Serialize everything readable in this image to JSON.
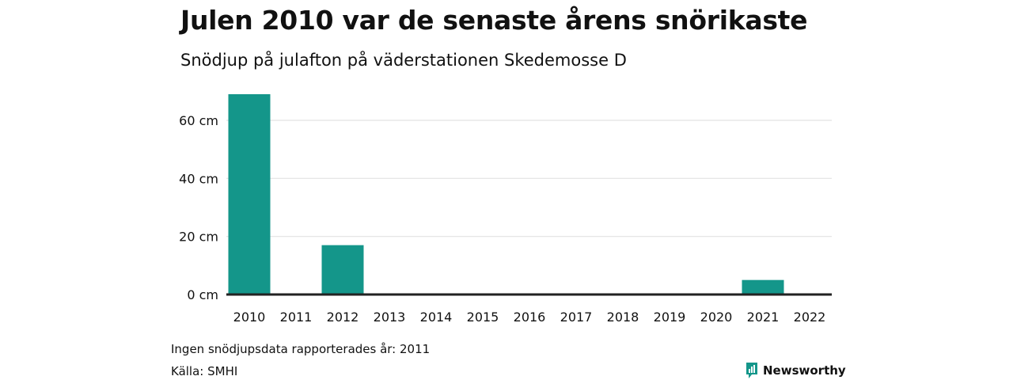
{
  "chart_data": {
    "type": "bar",
    "title": "Julen 2010 var de senaste årens snörikaste",
    "subtitle": "Snödjup på julafton på väderstationen Skedemosse D",
    "categories": [
      "2010",
      "2011",
      "2012",
      "2013",
      "2014",
      "2015",
      "2016",
      "2017",
      "2018",
      "2019",
      "2020",
      "2021",
      "2022"
    ],
    "values": [
      69,
      null,
      17,
      0,
      0,
      0,
      0,
      0,
      0,
      0,
      0,
      5,
      0
    ],
    "ylim": [
      0,
      75
    ],
    "yticks": [
      {
        "value": 0,
        "label": "0 cm"
      },
      {
        "value": 20,
        "label": "20 cm"
      },
      {
        "value": 40,
        "label": "40 cm"
      },
      {
        "value": 60,
        "label": "60 cm"
      }
    ],
    "xlabel": "",
    "ylabel": "",
    "grid": true,
    "bar_color": "#14968a"
  },
  "footer": {
    "note": "Ingen snödjupsdata rapporterades år: 2011",
    "source": "Källa: SMHI"
  },
  "logo": {
    "text": "Newsworthy",
    "color": "#14968a",
    "icon": "bar-chart-icon"
  }
}
